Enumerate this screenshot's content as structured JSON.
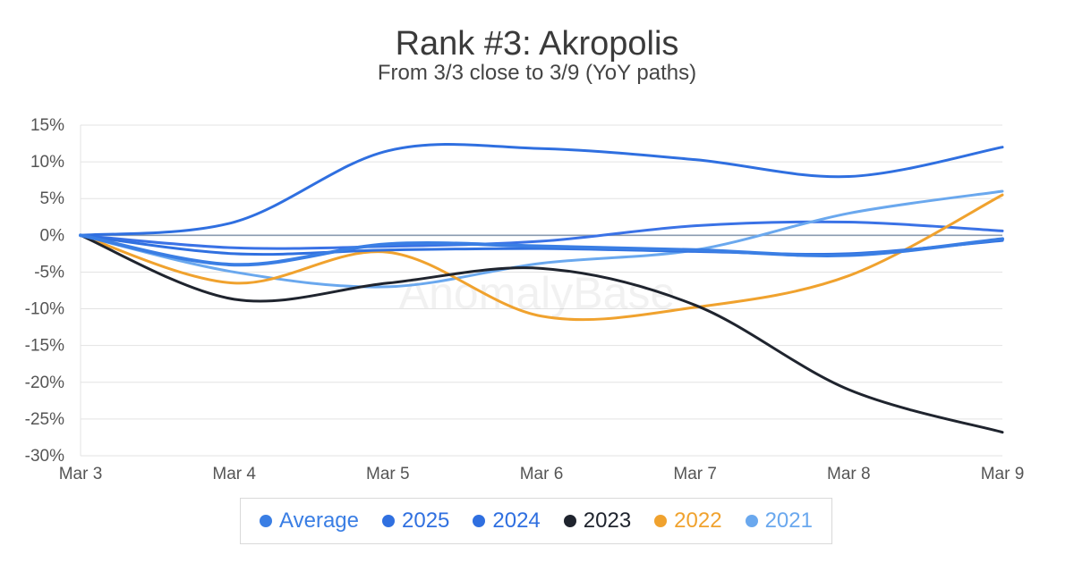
{
  "chart_data": {
    "type": "line",
    "title": "Rank #3: Akropolis",
    "subtitle": "From 3/3 close to 3/9 (YoY paths)",
    "watermark": "AnomalyBase",
    "x": [
      "Mar 3",
      "Mar 4",
      "Mar 5",
      "Mar 6",
      "Mar 7",
      "Mar 8",
      "Mar 9"
    ],
    "ylim": [
      -30,
      15
    ],
    "yticks": [
      15,
      10,
      5,
      0,
      -5,
      -10,
      -15,
      -20,
      -25,
      -30
    ],
    "ytick_labels": [
      "15%",
      "10%",
      "5%",
      "0%",
      "-5%",
      "-10%",
      "-15%",
      "-20%",
      "-25%",
      "-30%"
    ],
    "grid": true,
    "legend_position": "bottom",
    "series": [
      {
        "name": "Average",
        "color": "#3a7ee4",
        "values": [
          0,
          -4,
          -1.2,
          -1.5,
          -2,
          -2.7,
          -0.5
        ]
      },
      {
        "name": "2025",
        "color": "#3070e0",
        "values": [
          0,
          -2.5,
          -2,
          -1.8,
          -2.2,
          -2.5,
          -0.7
        ]
      },
      {
        "name": "2024",
        "color": "#2f6fe0",
        "values": [
          0,
          1.8,
          11.5,
          11.8,
          10.3,
          8,
          12
        ]
      },
      {
        "name": "2023",
        "color": "#1f242e",
        "values": [
          0,
          -8.7,
          -6.5,
          -4.5,
          -9.5,
          -21,
          -26.8
        ]
      },
      {
        "name": "2022",
        "color": "#f0a22e",
        "values": [
          0,
          -6.5,
          -2.3,
          -11,
          -9.8,
          -5.5,
          5.5
        ]
      },
      {
        "name": "2021",
        "color": "#6aa8ee",
        "values": [
          0,
          -5,
          -7,
          -3.8,
          -2,
          3,
          6
        ]
      }
    ],
    "extra_series": [
      {
        "color": "#3a72e6",
        "values": [
          0,
          -1.7,
          -1.5,
          -0.8,
          1.3,
          1.8,
          0.6
        ]
      }
    ]
  }
}
